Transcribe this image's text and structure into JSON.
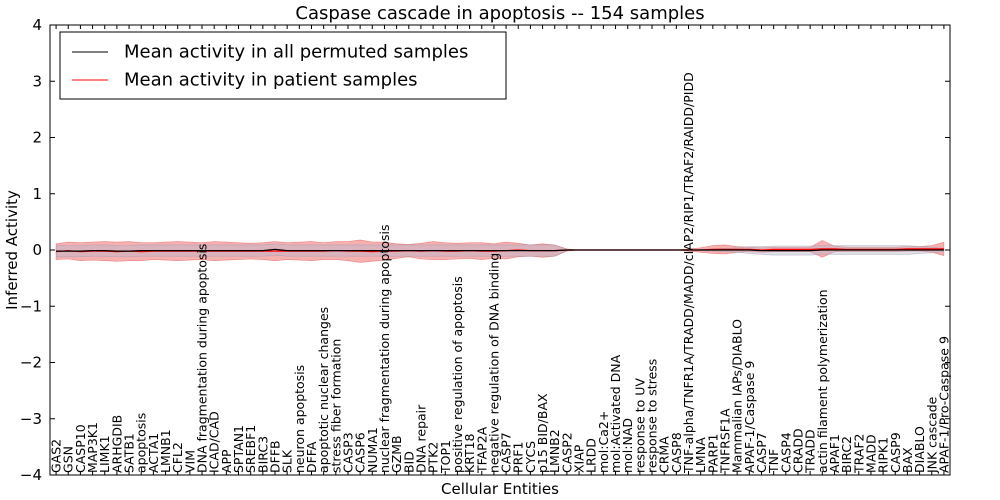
{
  "chart_data": {
    "type": "line",
    "title": "Caspase cascade in apoptosis -- 154 samples",
    "xlabel": "Cellular Entities",
    "ylabel": "Inferred Activity",
    "ylim": [
      -4,
      4
    ],
    "yticks": [
      -4,
      -3,
      -2,
      -1,
      0,
      1,
      2,
      3,
      4
    ],
    "ytick_labels": [
      "−4",
      "−3",
      "−2",
      "−1",
      "0",
      "1",
      "2",
      "3",
      "4"
    ],
    "legend_position": "top-left",
    "categories": [
      "GAS2",
      "GSN",
      "CASP10",
      "MAP3K1",
      "LIMK1",
      "ARHGDIB",
      "SATB1",
      "apoptosis",
      "ACTA1",
      "LMNB1",
      "CFL2",
      "VIM",
      "DNA fragmentation during apoptosis",
      "ICAD/CAD",
      "APP",
      "SPTAN1",
      "SREBF1",
      "BIRC3",
      "DFFB",
      "SLK",
      "neuron apoptosis",
      "DFFA",
      "apoptotic nuclear changes",
      "stress fiber formation",
      "CASP3",
      "CASP6",
      "NUMA1",
      "nuclear fragmentation during apoptosis",
      "GZMB",
      "BID",
      "DNA repair",
      "PTK2",
      "TOP1",
      "positive regulation of apoptosis",
      "KRT18",
      "TFAP2A",
      "negative regulation of DNA binding",
      "CASP7",
      "PRF1",
      "CYCS",
      "p15 BID/BAX",
      "LMNB2",
      "CASP2",
      "XIAP",
      "LRDD",
      "mol:Ca2+",
      "mol:Activated DNA",
      "mol:NAD",
      "response to UV",
      "response to stress",
      "CRMA",
      "CASP8",
      "TNF-alpha/TNFR1A/TRADD/MADD/cIAP2/RIP1/TRAF2/RAIDD/PIDD",
      "LMNA",
      "PARP1",
      "TNFRSF1A",
      "Mammalian IAPs/DIABLO",
      "APAF-1/Caspase 9",
      "CASP7",
      "TNF",
      "CASP4",
      "CRADD",
      "TRADD",
      "actin filament polymerization",
      "APAF1",
      "BIRC2",
      "TRAF2",
      "MADD",
      "RIPK1",
      "CASP9",
      "BAX",
      "DIABLO",
      "JNK cascade",
      "APAF-1/Pro-Caspase 9"
    ],
    "series": [
      {
        "name": "Mean activity in all permuted samples",
        "color": "#000000",
        "values": [
          -0.02,
          -0.02,
          -0.02,
          -0.01,
          -0.01,
          -0.02,
          -0.02,
          -0.01,
          -0.01,
          -0.01,
          -0.01,
          -0.01,
          -0.01,
          -0.01,
          -0.01,
          -0.01,
          -0.01,
          -0.01,
          0.01,
          -0.01,
          -0.01,
          -0.01,
          -0.01,
          -0.01,
          -0.01,
          -0.01,
          -0.01,
          -0.01,
          -0.01,
          -0.01,
          -0.01,
          -0.01,
          -0.01,
          -0.01,
          -0.01,
          -0.01,
          -0.01,
          -0.01,
          -0.01,
          -0.01,
          -0.01,
          -0.01,
          0,
          0,
          0,
          0,
          0,
          0,
          0,
          0,
          0,
          0,
          0,
          0,
          0,
          0,
          0,
          0,
          -0.01,
          -0.01,
          -0.01,
          -0.01,
          -0.01,
          0,
          0,
          0,
          0,
          0,
          0,
          0,
          0,
          0,
          0,
          0
        ],
        "band": [
          0.1,
          0.1,
          0.1,
          0.1,
          0.1,
          0.1,
          0.1,
          0.1,
          0.1,
          0.1,
          0.1,
          0.1,
          0.1,
          0.1,
          0.1,
          0.1,
          0.1,
          0.1,
          0.1,
          0.1,
          0.1,
          0.1,
          0.1,
          0.1,
          0.1,
          0.1,
          0.1,
          0.1,
          0.1,
          0.1,
          0.1,
          0.1,
          0.1,
          0.1,
          0.1,
          0.1,
          0.1,
          0.1,
          0.1,
          0.1,
          0.1,
          0.1,
          0.01,
          0,
          0,
          0,
          0,
          0,
          0,
          0,
          0,
          0,
          0,
          0.01,
          0.02,
          0.03,
          0.04,
          0.06,
          0.07,
          0.08,
          0.08,
          0.08,
          0.08,
          0.08,
          0.08,
          0.08,
          0.08,
          0.08,
          0.08,
          0.08,
          0.08,
          0.06,
          0.05,
          0.03
        ]
      },
      {
        "name": "Mean activity in patient samples",
        "color": "#ff0000",
        "values": [
          -0.03,
          -0.01,
          -0.03,
          -0.02,
          -0.02,
          -0.03,
          -0.02,
          -0.03,
          -0.02,
          -0.02,
          -0.02,
          -0.02,
          -0.02,
          -0.02,
          -0.02,
          -0.02,
          -0.02,
          -0.02,
          -0.02,
          -0.02,
          -0.02,
          -0.02,
          -0.02,
          -0.01,
          -0.02,
          -0.02,
          -0.03,
          -0.02,
          -0.02,
          -0.01,
          -0.02,
          -0.01,
          -0.02,
          -0.02,
          -0.01,
          -0.02,
          -0.02,
          -0.01,
          0,
          -0.01,
          -0.01,
          -0.01,
          0,
          0,
          0,
          0,
          0,
          0,
          0,
          0,
          0,
          0,
          0,
          0,
          0.01,
          0.01,
          0.01,
          0.01,
          0,
          0.01,
          0.01,
          0.01,
          0.01,
          0.02,
          0.02,
          0.01,
          0.01,
          0.01,
          0.01,
          0.01,
          0.02,
          0.02,
          0.02,
          0.02
        ],
        "band": [
          0.14,
          0.15,
          0.16,
          0.16,
          0.17,
          0.17,
          0.17,
          0.16,
          0.15,
          0.16,
          0.17,
          0.16,
          0.15,
          0.17,
          0.16,
          0.15,
          0.14,
          0.15,
          0.17,
          0.15,
          0.16,
          0.17,
          0.15,
          0.16,
          0.17,
          0.2,
          0.17,
          0.16,
          0.13,
          0.11,
          0.14,
          0.16,
          0.15,
          0.14,
          0.14,
          0.15,
          0.13,
          0.15,
          0.12,
          0.1,
          0.12,
          0.1,
          0.02,
          0,
          0,
          0,
          0,
          0,
          0,
          0,
          0,
          0,
          0.02,
          0.04,
          0.07,
          0.08,
          0.05,
          0.04,
          0.04,
          0.04,
          0.04,
          0.04,
          0.04,
          0.15,
          0.05,
          0.04,
          0.04,
          0.04,
          0.04,
          0.04,
          0.04,
          0.04,
          0.06,
          0.12
        ]
      }
    ]
  }
}
